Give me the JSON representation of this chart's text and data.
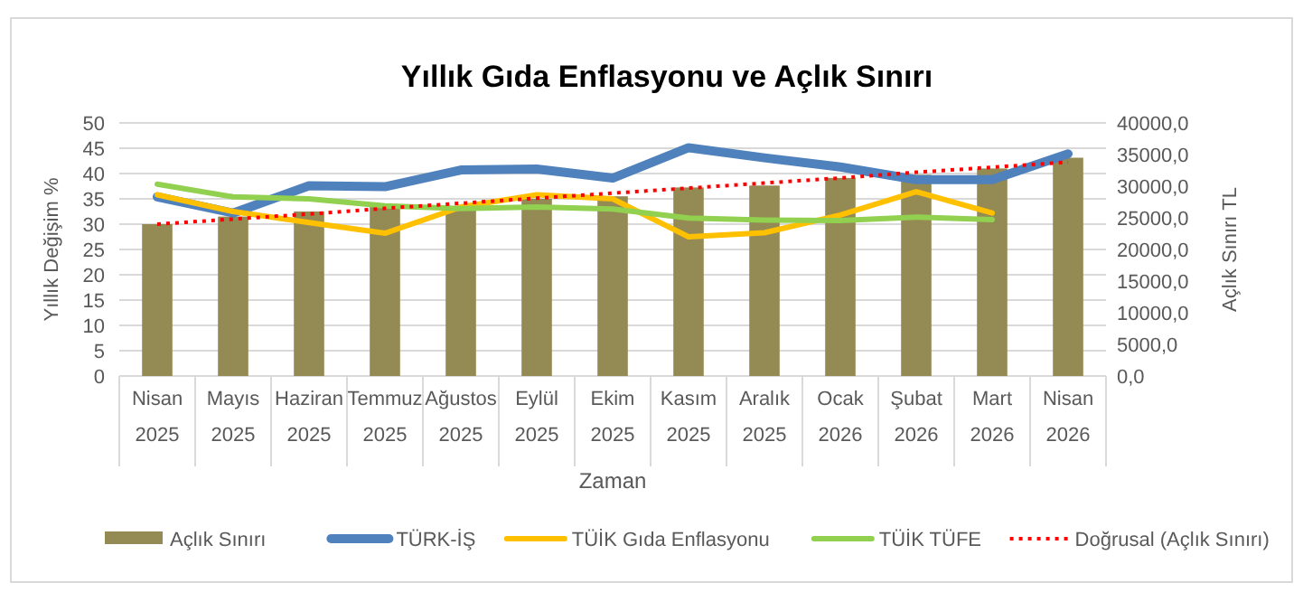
{
  "chart_data": {
    "type": "bar",
    "title": "Yıllık Gıda Enflasyonu ve Açlık Sınırı",
    "xlabel": "Zaman",
    "ylabel": "Yıllık Değişim %",
    "y2label": "Açlık Sınırı TL",
    "categories": [
      "Nisan\n2025",
      "Mayıs\n2025",
      "Haziran\n2025",
      "Temmuz\n2025",
      "Ağustos\n2025",
      "Eylül\n2025",
      "Ekim\n2025",
      "Kasım\n2025",
      "Aralık\n2025",
      "Ocak\n2026",
      "Şubat\n2026",
      "Mart\n2026",
      "Nisan\n2026"
    ],
    "series": [
      {
        "name": "Açlık Sınırı",
        "axis": "y2",
        "color": "#948a54",
        "values": [
          24000,
          25200,
          26000,
          26800,
          26800,
          28000,
          28400,
          29800,
          30100,
          31300,
          31800,
          32800,
          34500
        ]
      },
      {
        "name": "TÜRK-İŞ",
        "type": "line",
        "color": "#4f81bd",
        "values": [
          35.4,
          32.2,
          37.6,
          37.4,
          40.7,
          40.9,
          39.1,
          45.1,
          43.1,
          41.3,
          38.8,
          38.8,
          43.9
        ]
      },
      {
        "name": "TÜİK Gıda Enflasyonu",
        "type": "line",
        "color": "#ffc000",
        "values": [
          35.8,
          32.5,
          30.3,
          28.2,
          33.4,
          35.8,
          35.0,
          27.5,
          28.3,
          31.8,
          36.4,
          32.2,
          null
        ]
      },
      {
        "name": "TÜİK TÜFE",
        "type": "line",
        "color": "#92d050",
        "values": [
          37.9,
          35.4,
          35.0,
          33.6,
          33.1,
          33.4,
          33.0,
          31.2,
          30.8,
          30.7,
          31.4,
          30.9,
          null
        ]
      },
      {
        "name": "Doğrusal (Açlık Sınırı)",
        "type": "line",
        "axis": "y2",
        "line_style": "dotted",
        "color": "#ff0000",
        "values": [
          24000,
          24800,
          25600,
          26500,
          27300,
          28100,
          28900,
          29700,
          30500,
          31300,
          32200,
          33000,
          33800
        ]
      }
    ],
    "ylim": [
      0,
      50
    ],
    "yticks": [
      0,
      5,
      10,
      15,
      20,
      25,
      30,
      35,
      40,
      45,
      50
    ],
    "y2lim": [
      0,
      40000
    ],
    "y2ticks": [
      {
        "value": 0,
        "label": "0,0"
      },
      {
        "value": 5000,
        "label": "5000,0"
      },
      {
        "value": 10000,
        "label": "10000,0"
      },
      {
        "value": 15000,
        "label": "15000,0"
      },
      {
        "value": 20000,
        "label": "20000,0"
      },
      {
        "value": 25000,
        "label": "25000,0"
      },
      {
        "value": 30000,
        "label": "30000,0"
      },
      {
        "value": 35000,
        "label": "35000,0"
      },
      {
        "value": 40000,
        "label": "40000,0"
      }
    ],
    "grid": "y",
    "legend": "bottom",
    "marker": "none"
  }
}
